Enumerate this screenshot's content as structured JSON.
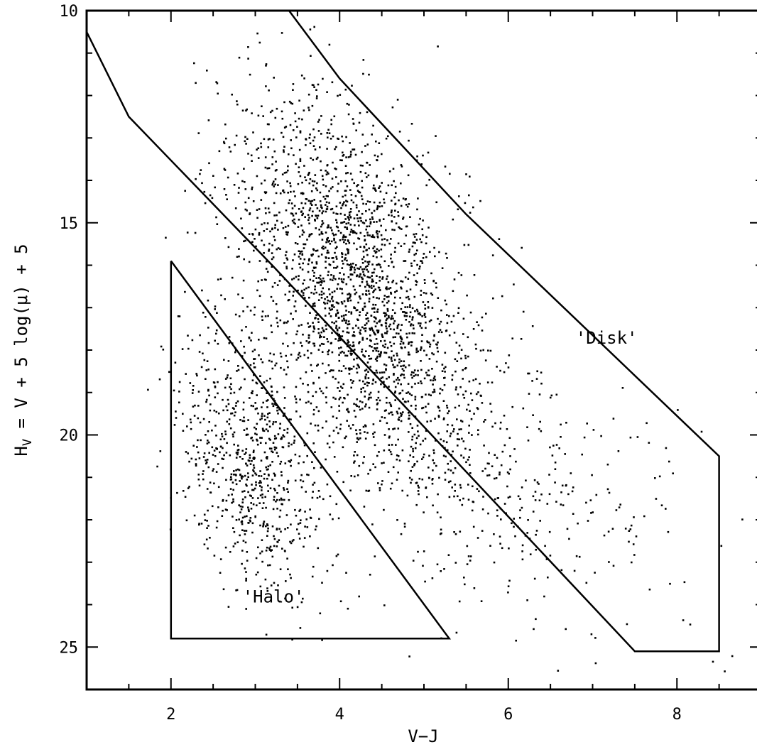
{
  "chart_data": {
    "type": "scatter",
    "title": "",
    "xlabel": "V−J",
    "ylabel": "H",
    "ylabel_subscript": "V",
    "ylabel_rest": " = V + 5 log(μ) + 5",
    "xlim": [
      1,
      9
    ],
    "ylim": [
      26,
      10
    ],
    "y_inverted": true,
    "x_ticks": [
      2,
      4,
      6,
      8
    ],
    "y_ticks": [
      10,
      15,
      20,
      25
    ],
    "x_minor_step": 0.5,
    "y_minor_step": 1,
    "grid": false,
    "legend": "none",
    "regions": [
      {
        "label": "'Disk'",
        "label_position": [
          6.8,
          17.85
        ],
        "outline": [
          [
            1.0,
            10.5
          ],
          [
            1.5,
            12.5
          ],
          [
            3.2,
            16.0
          ],
          [
            7.5,
            25.1
          ],
          [
            8.5,
            25.1
          ],
          [
            8.5,
            20.5
          ],
          [
            5.5,
            14.8
          ],
          [
            4.0,
            11.6
          ],
          [
            3.4,
            10.0
          ]
        ]
      },
      {
        "label": "'Halo'",
        "label_position": [
          2.85,
          23.95
        ],
        "outline": [
          [
            2.0,
            15.9
          ],
          [
            5.3,
            24.8
          ],
          [
            2.0,
            24.8
          ],
          [
            2.0,
            15.9
          ]
        ]
      }
    ],
    "point_clusters": [
      {
        "mean": [
          4.2,
          16.6
        ],
        "sd": [
          0.72,
          2.3
        ],
        "rho": 0.5,
        "n": 2300
      },
      {
        "mean": [
          2.95,
          20.6
        ],
        "sd": [
          0.42,
          1.55
        ],
        "rho": 0.35,
        "n": 750
      },
      {
        "mean": [
          5.9,
          21.0
        ],
        "sd": [
          1.1,
          1.8
        ],
        "rho": 0.45,
        "n": 350
      }
    ]
  }
}
